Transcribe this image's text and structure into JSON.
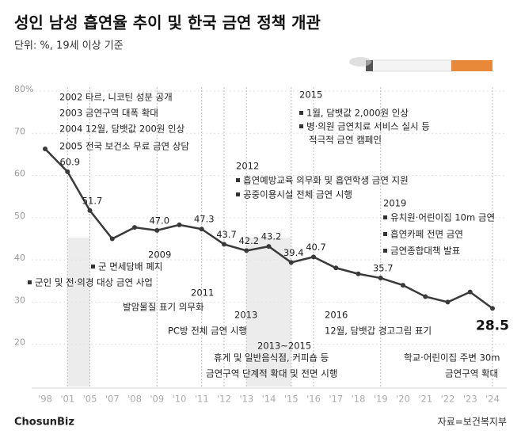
{
  "chart_data": {
    "type": "line",
    "title": "성인 남성 흡연율 추이 및 한국 금연 정책 개관",
    "subtitle": "단위: %, 19세 이상 기준",
    "source": "자료=보건복지부",
    "logo": "ChosunBiz",
    "categories": [
      "'98",
      "'01",
      "'05",
      "'07",
      "'08",
      "'09",
      "'10",
      "'11",
      "'12",
      "'13",
      "'14",
      "'15",
      "'16",
      "'17",
      "'18",
      "'19",
      "'20",
      "'21",
      "'22",
      "'23",
      "'24"
    ],
    "values": [
      66.3,
      60.9,
      51.7,
      45.0,
      47.7,
      47.0,
      48.3,
      47.3,
      43.7,
      42.2,
      43.2,
      39.4,
      40.7,
      38.1,
      36.7,
      35.7,
      34.0,
      31.3,
      30.0,
      32.4,
      28.5
    ],
    "value_labels": [
      null,
      "60.9",
      "51.7",
      null,
      null,
      "47.0",
      null,
      "47.3",
      "43.7",
      "42.2",
      "43.2",
      "39.4",
      "40.7",
      null,
      null,
      "35.7",
      null,
      null,
      null,
      null,
      "28.5"
    ],
    "color": "#3a3a3a",
    "ylim": [
      10,
      80
    ],
    "yticks": [
      {
        "value": 80,
        "label": "80%"
      },
      70,
      60,
      50,
      40,
      30,
      20
    ],
    "grid": true,
    "shaded": [
      {
        "from": "'01",
        "to": "'05"
      },
      {
        "from": "'13",
        "to": "'15"
      }
    ],
    "annotations": [
      "2002 타르, 니코틴 성분 공개",
      "2003 금연구역 대폭 확대",
      "2004 12월, 담뱃값 200원 인상",
      "2005 전국 보건소 무료 금연 상담",
      "2015",
      "1월, 담뱃값 2,000원 인상",
      "병·의원 금연치료 서비스 실시 등",
      "적극적 금연 캠페인",
      "2012",
      "흡연예방교육 의무화 및 흡연학생 금연 지원",
      "공중이용시설 전체 금연 시행",
      "2019",
      "유치원·어린이집 10m 금연",
      "흡연카페 전면 금연",
      "금연종합대책 발표",
      "2009",
      "군 면세담배 폐지",
      "군인 및 전·의경 대상 금연 사업",
      "2011",
      "발암물질 표기 의무화",
      "2013",
      "PC방 전체 금연 시행",
      "휴게 및 일반음식점, 커피숍 등",
      "금연구역 단계적 확대 및 전면 시행",
      "2013~2015",
      "2016",
      "12월, 담뱃갑 경고그림 표기",
      "학교·어린이집 주변 30m",
      "금연구역 확대"
    ]
  }
}
